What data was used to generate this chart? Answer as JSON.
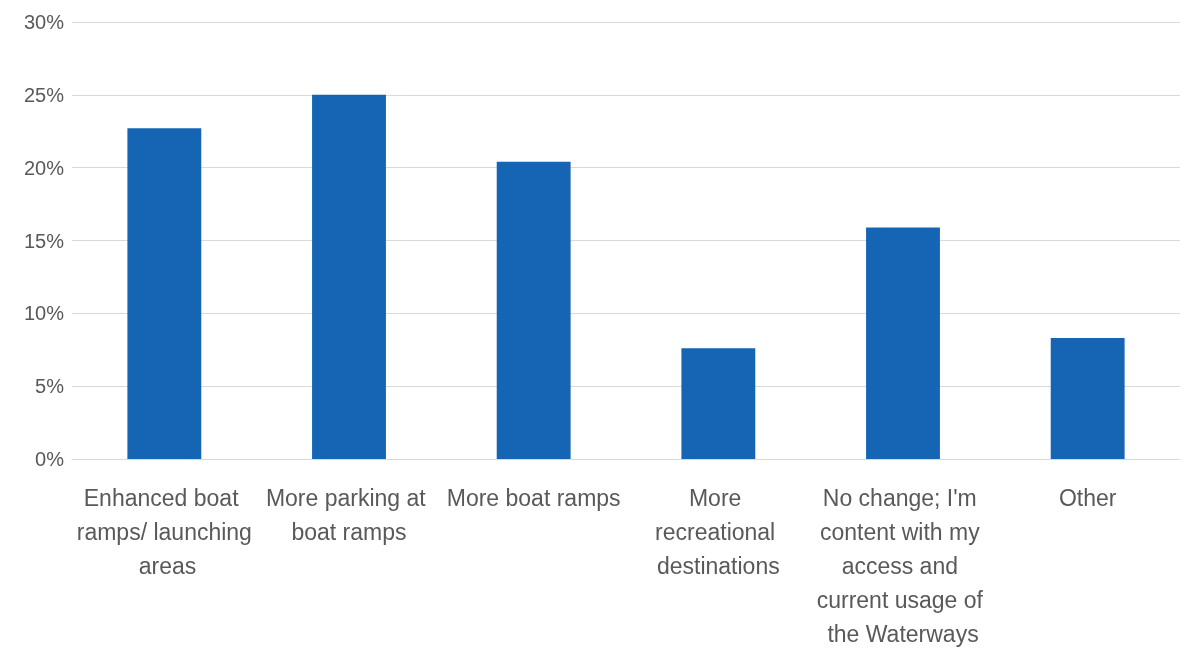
{
  "chart_data": {
    "type": "bar",
    "categories": [
      "Enhanced boat ramps/ launching areas",
      "More parking at boat ramps",
      "More boat ramps",
      "More recreational destinations",
      "No change; I'm content with my access and current usage of the Waterways",
      "Other"
    ],
    "values": [
      22.7,
      25.0,
      20.4,
      7.6,
      15.9,
      8.3
    ],
    "color": "#1565b4",
    "ylim": [
      0,
      30
    ],
    "yticks": [
      {
        "value": 0,
        "label": "0%"
      },
      {
        "value": 5,
        "label": "5%"
      },
      {
        "value": 10,
        "label": "10%"
      },
      {
        "value": 15,
        "label": "15%"
      },
      {
        "value": 20,
        "label": "20%"
      },
      {
        "value": 25,
        "label": "25%"
      },
      {
        "value": 30,
        "label": "30%"
      }
    ],
    "grid": "y"
  }
}
